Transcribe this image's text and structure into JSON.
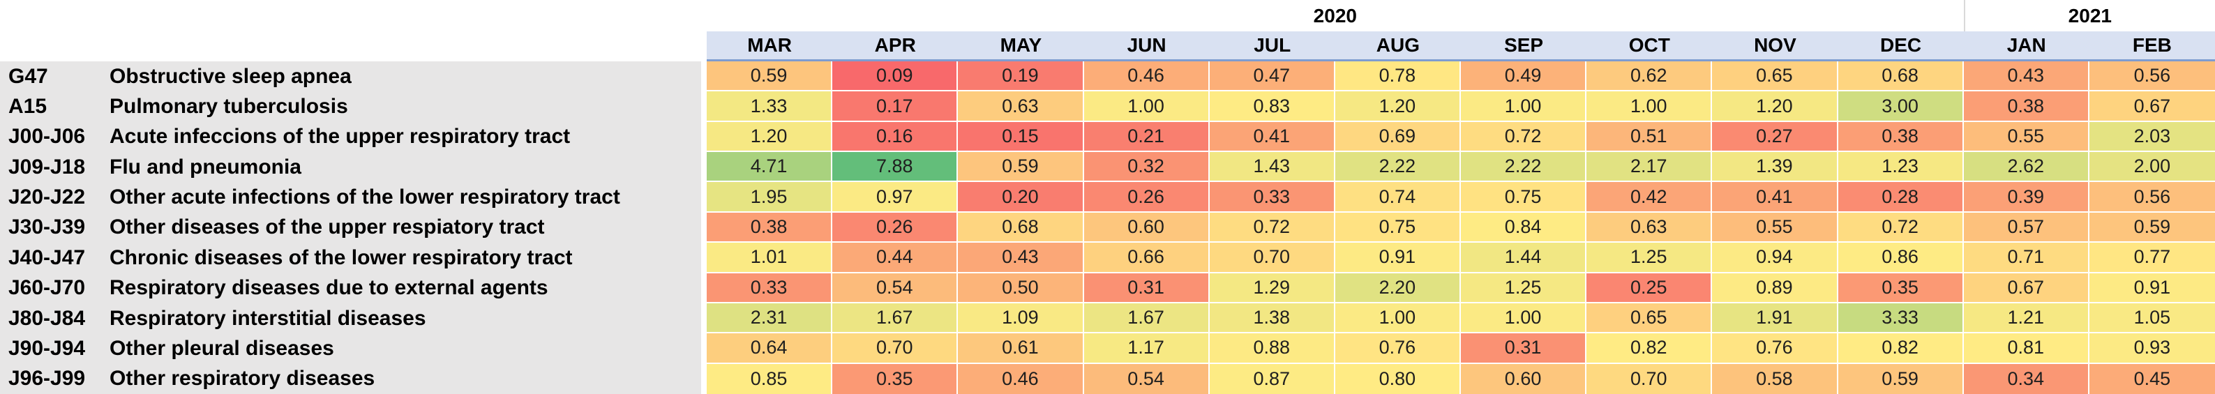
{
  "header": {
    "years": [
      {
        "label": "2020",
        "span": 10
      },
      {
        "label": "2021",
        "span": 2
      }
    ],
    "months": [
      "MAR",
      "APR",
      "MAY",
      "JUN",
      "JUL",
      "AUG",
      "SEP",
      "OCT",
      "NOV",
      "DEC",
      "JAN",
      "FEB"
    ]
  },
  "chart_data": {
    "type": "heatmap",
    "title": "",
    "columns": [
      "MAR",
      "APR",
      "MAY",
      "JUN",
      "JUL",
      "AUG",
      "SEP",
      "OCT",
      "NOV",
      "DEC",
      "JAN",
      "FEB"
    ],
    "column_groups": [
      {
        "label": "2020",
        "columns": [
          "MAR",
          "APR",
          "MAY",
          "JUN",
          "JUL",
          "AUG",
          "SEP",
          "OCT",
          "NOV",
          "DEC"
        ]
      },
      {
        "label": "2021",
        "columns": [
          "JAN",
          "FEB"
        ]
      }
    ],
    "rows": [
      {
        "code": "G47",
        "label": "Obstructive sleep apnea",
        "values": [
          0.59,
          0.09,
          0.19,
          0.46,
          0.47,
          0.78,
          0.49,
          0.62,
          0.65,
          0.68,
          0.43,
          0.56
        ]
      },
      {
        "code": "A15",
        "label": "Pulmonary tuberculosis",
        "values": [
          1.33,
          0.17,
          0.63,
          1.0,
          0.83,
          1.2,
          1.0,
          1.0,
          1.2,
          3.0,
          0.38,
          0.67
        ]
      },
      {
        "code": "J00-J06",
        "label": "Acute infeccions of the upper respiratory tract",
        "values": [
          1.2,
          0.16,
          0.15,
          0.21,
          0.41,
          0.69,
          0.72,
          0.51,
          0.27,
          0.38,
          0.55,
          2.03
        ]
      },
      {
        "code": "J09-J18",
        "label": "Flu and pneumonia",
        "values": [
          4.71,
          7.88,
          0.59,
          0.32,
          1.43,
          2.22,
          2.22,
          2.17,
          1.39,
          1.23,
          2.62,
          2.0
        ]
      },
      {
        "code": "J20-J22",
        "label": "Other acute infections of the lower respiratory tract",
        "values": [
          1.95,
          0.97,
          0.2,
          0.26,
          0.33,
          0.74,
          0.75,
          0.42,
          0.41,
          0.28,
          0.39,
          0.56
        ]
      },
      {
        "code": "J30-J39",
        "label": "Other diseases of the upper respiatory tract",
        "values": [
          0.38,
          0.26,
          0.68,
          0.6,
          0.72,
          0.75,
          0.84,
          0.63,
          0.55,
          0.72,
          0.57,
          0.59
        ]
      },
      {
        "code": "J40-J47",
        "label": "Chronic diseases of the lower respiratory tract",
        "values": [
          1.01,
          0.44,
          0.43,
          0.66,
          0.7,
          0.91,
          1.44,
          1.25,
          0.94,
          0.86,
          0.71,
          0.77
        ]
      },
      {
        "code": "J60-J70",
        "label": "Respiratory diseases due to external agents",
        "values": [
          0.33,
          0.54,
          0.5,
          0.31,
          1.29,
          2.2,
          1.25,
          0.25,
          0.89,
          0.35,
          0.67,
          0.91
        ]
      },
      {
        "code": "J80-J84",
        "label": "Respiratory interstitial diseases",
        "values": [
          2.31,
          1.67,
          1.09,
          1.67,
          1.38,
          1.0,
          1.0,
          0.65,
          1.91,
          3.33,
          1.21,
          1.05
        ]
      },
      {
        "code": "J90-J94",
        "label": "Other pleural diseases",
        "values": [
          0.64,
          0.7,
          0.61,
          1.17,
          0.88,
          0.76,
          0.31,
          0.82,
          0.76,
          0.82,
          0.81,
          0.93
        ]
      },
      {
        "code": "J96-J99",
        "label": "Other respiratory diseases",
        "values": [
          0.85,
          0.35,
          0.46,
          0.54,
          0.87,
          0.8,
          0.6,
          0.7,
          0.58,
          0.59,
          0.34,
          0.45
        ]
      }
    ],
    "value_format": "0.00",
    "colorscale": {
      "type": "3-color",
      "min_value": 0.09,
      "min_color": "#F8696B",
      "mid_value": 0.8,
      "mid_color": "#FFEB84",
      "max_value": 7.88,
      "max_color": "#63BE7A"
    },
    "legend": "none",
    "grid": "white gridlines between cells"
  },
  "colors": {
    "background": "#FFFFFF",
    "header_bg": "#D9E1F2",
    "header_border": "#7E9CD0",
    "label_bg": "#E7E6E6",
    "year_divider": "#D9D9D9",
    "grid_line": "#FFFFFF",
    "text": "#000000",
    "value_text": "#1F1F1F"
  }
}
